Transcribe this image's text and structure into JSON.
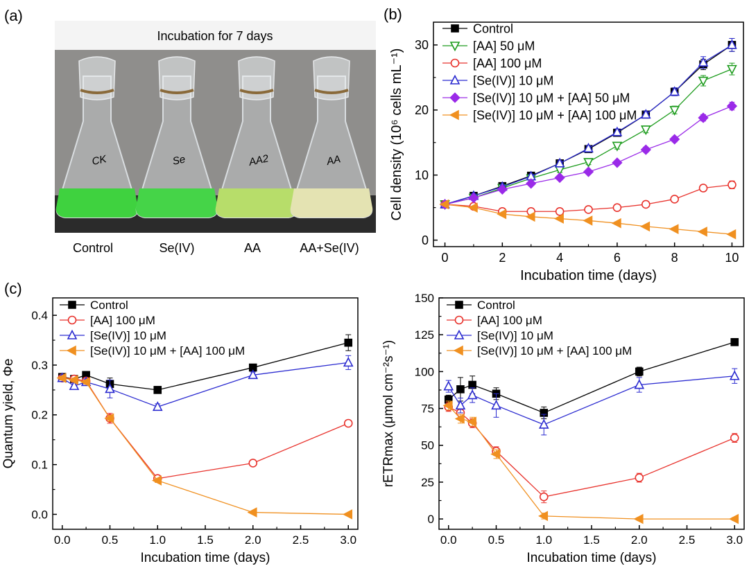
{
  "panel_labels": {
    "a": "(a)",
    "b": "(b)",
    "c": "(c)"
  },
  "photo": {
    "caption": "Incubation for 7 days",
    "flasks": [
      {
        "label": "Control",
        "liquid_color": "#3fd23f",
        "glass_text": "CK"
      },
      {
        "label": "Se(IV)",
        "liquid_color": "#45d448",
        "glass_text": "Se"
      },
      {
        "label": "AA",
        "liquid_color": "#b7dd6a",
        "glass_text": "AA2"
      },
      {
        "label": "AA+Se(IV)",
        "liquid_color": "#e4e3b2",
        "glass_text": "AA"
      }
    ]
  },
  "chart_data": [
    {
      "id": "b",
      "type": "line",
      "xlabel": "Incubation time (days)",
      "ylabel": "Cell density (10⁶ cells mL⁻¹)",
      "xlim": [
        -0.4,
        10.4
      ],
      "ylim": [
        -1,
        33.5
      ],
      "xticks": [
        0,
        2,
        4,
        6,
        8,
        10
      ],
      "yticks": [
        0,
        10,
        20,
        30
      ],
      "x": [
        0,
        1,
        2,
        3,
        4,
        5,
        6,
        7,
        8,
        9,
        10
      ],
      "legend_position": "top-left",
      "series": [
        {
          "name": "Control",
          "color": "#000000",
          "marker": "square",
          "filled": true,
          "values": [
            5.5,
            6.8,
            8.3,
            9.9,
            11.8,
            14.0,
            16.5,
            19.3,
            22.8,
            27.0,
            30.0
          ],
          "errors": [
            0.3,
            0.3,
            0.3,
            0.3,
            0.4,
            0.4,
            0.5,
            0.5,
            0.6,
            0.8,
            1.0
          ]
        },
        {
          "name": "[AA] 50 μM",
          "color": "#1c9b1c",
          "marker": "triangle-down",
          "filled": false,
          "values": [
            5.5,
            6.5,
            8.0,
            9.5,
            10.8,
            12.0,
            14.5,
            17.0,
            20.0,
            24.5,
            26.3
          ],
          "errors": [
            0.3,
            0.3,
            0.3,
            0.3,
            0.4,
            0.4,
            0.5,
            0.5,
            0.6,
            0.8,
            0.9
          ]
        },
        {
          "name": "[AA] 100 μM",
          "color": "#e8322c",
          "marker": "circle",
          "filled": false,
          "values": [
            5.5,
            5.2,
            4.4,
            4.4,
            4.4,
            4.7,
            5.0,
            5.5,
            6.3,
            8.0,
            8.5
          ],
          "errors": [
            0.2,
            0.2,
            0.2,
            0.2,
            0.2,
            0.2,
            0.2,
            0.3,
            0.3,
            0.5,
            0.6
          ]
        },
        {
          "name": "[Se(IV)] 10 μM",
          "color": "#2a2ad0",
          "marker": "triangle-up",
          "filled": false,
          "values": [
            5.5,
            6.8,
            8.2,
            9.8,
            11.8,
            14.1,
            16.6,
            19.3,
            22.8,
            27.3,
            30.0
          ],
          "errors": [
            0.3,
            0.3,
            0.3,
            0.3,
            0.4,
            0.4,
            0.5,
            0.5,
            0.6,
            0.9,
            1.0
          ]
        },
        {
          "name": "[Se(IV)] 10 μM + [AA] 50 μM",
          "color": "#9a2ae8",
          "marker": "diamond",
          "filled": true,
          "values": [
            5.5,
            6.5,
            7.8,
            8.7,
            9.6,
            10.5,
            11.9,
            13.9,
            15.5,
            18.8,
            20.6
          ],
          "errors": [
            0.3,
            0.3,
            0.3,
            0.3,
            0.3,
            0.3,
            0.3,
            0.4,
            0.4,
            0.5,
            0.6
          ]
        },
        {
          "name": "[Se(IV)] 10 μM + [AA] 100 μM",
          "color": "#f09020",
          "marker": "triangle-left",
          "filled": true,
          "values": [
            5.5,
            5.0,
            4.0,
            3.6,
            3.3,
            3.0,
            2.6,
            2.1,
            1.7,
            1.3,
            0.9
          ],
          "errors": [
            0.2,
            0.2,
            0.2,
            0.2,
            0.2,
            0.2,
            0.2,
            0.2,
            0.2,
            0.2,
            0.2
          ]
        }
      ]
    },
    {
      "id": "c-left",
      "type": "line",
      "xlabel": "Incubation time (days)",
      "ylabel": "Quantum yield, Φe",
      "xlim": [
        -0.1,
        3.1
      ],
      "ylim": [
        -0.03,
        0.435
      ],
      "xticks": [
        0.0,
        0.5,
        1.0,
        1.5,
        2.0,
        2.5,
        3.0
      ],
      "xtick_labels": [
        "0.0",
        "0.5",
        "1.0",
        "1.5",
        "2.0",
        "2.5",
        "3.0"
      ],
      "yticks": [
        0.0,
        0.1,
        0.2,
        0.3,
        0.4
      ],
      "ytick_labels": [
        "0.0",
        "0.1",
        "0.2",
        "0.3",
        "0.4"
      ],
      "x": [
        0,
        0.125,
        0.25,
        0.5,
        1,
        2,
        3
      ],
      "legend_position": "top-left",
      "series": [
        {
          "name": "Control",
          "color": "#000000",
          "marker": "square",
          "filled": true,
          "values": [
            0.276,
            0.272,
            0.28,
            0.262,
            0.25,
            0.295,
            0.345
          ],
          "errors": [
            0.006,
            0.006,
            0.006,
            0.012,
            0.006,
            0.006,
            0.016
          ]
        },
        {
          "name": "[AA] 100 μM",
          "color": "#e8322c",
          "marker": "circle",
          "filled": false,
          "values": [
            0.274,
            0.272,
            0.268,
            0.193,
            0.072,
            0.103,
            0.183
          ],
          "errors": [
            0.006,
            0.006,
            0.006,
            0.01,
            0.006,
            0.006,
            0.006
          ]
        },
        {
          "name": "[Se(IV)] 10 μM",
          "color": "#2a2ad0",
          "marker": "triangle-up",
          "filled": false,
          "values": [
            0.274,
            0.258,
            0.266,
            0.252,
            0.216,
            0.28,
            0.305
          ],
          "errors": [
            0.006,
            0.006,
            0.006,
            0.018,
            0.006,
            0.006,
            0.014
          ]
        },
        {
          "name": "[Se(IV)] 10 μM + [AA] 100 μM",
          "color": "#f09020",
          "marker": "triangle-left",
          "filled": true,
          "values": [
            0.274,
            0.27,
            0.266,
            0.193,
            0.068,
            0.004,
            0.0
          ],
          "errors": [
            0.004,
            0.004,
            0.004,
            0.006,
            0.004,
            0.002,
            0.002
          ]
        }
      ]
    },
    {
      "id": "c-right",
      "type": "line",
      "xlabel": "Incubation time (days)",
      "ylabel": "rETRmax (μmol cm⁻²s⁻¹)",
      "xlim": [
        -0.1,
        3.1
      ],
      "ylim": [
        -7,
        150
      ],
      "xticks": [
        0.0,
        0.5,
        1.0,
        1.5,
        2.0,
        2.5,
        3.0
      ],
      "xtick_labels": [
        "0.0",
        "0.5",
        "1.0",
        "1.5",
        "2.0",
        "2.5",
        "3.0"
      ],
      "yticks": [
        0,
        25,
        50,
        75,
        100,
        125,
        150
      ],
      "x": [
        0,
        0.125,
        0.25,
        0.5,
        1,
        2,
        3
      ],
      "legend_position": "top-left",
      "series": [
        {
          "name": "Control",
          "color": "#000000",
          "marker": "square",
          "filled": true,
          "values": [
            81,
            88,
            91,
            85,
            72,
            100,
            120
          ],
          "errors": [
            3,
            8,
            6,
            4,
            4,
            3,
            2
          ]
        },
        {
          "name": "[AA] 100 μM",
          "color": "#e8322c",
          "marker": "circle",
          "filled": false,
          "values": [
            76,
            72,
            65,
            46,
            15,
            28,
            55
          ],
          "errors": [
            3,
            3,
            3,
            3,
            4,
            3,
            3
          ]
        },
        {
          "name": "[Se(IV)] 10 μM",
          "color": "#2a2ad0",
          "marker": "triangle-up",
          "filled": false,
          "values": [
            90,
            77,
            84,
            77,
            64,
            91,
            97
          ],
          "errors": [
            4,
            5,
            5,
            8,
            7,
            5,
            5
          ]
        },
        {
          "name": "[Se(IV)] 10 μM + [AA] 100 μM",
          "color": "#f09020",
          "marker": "triangle-left",
          "filled": true,
          "values": [
            77,
            68,
            66,
            44,
            2,
            0,
            0
          ],
          "errors": [
            3,
            3,
            3,
            3,
            2,
            1,
            1
          ]
        }
      ]
    }
  ]
}
